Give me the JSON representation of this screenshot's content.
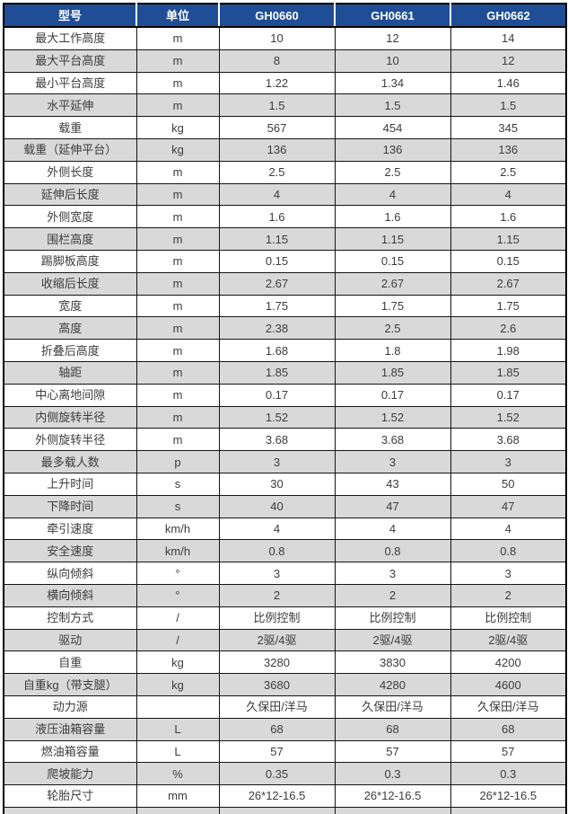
{
  "colors": {
    "header_bg": "#1F4E96",
    "header_text": "#FFFFFF",
    "row_alt_bg": "#D9D9D9",
    "row_bg": "#FFFFFF",
    "body_text": "#3C3C3C",
    "border": "#000000"
  },
  "chart_data": {
    "type": "table",
    "title": "",
    "columns": [
      "型号",
      "单位",
      "GH0660",
      "GH0661",
      "GH0662"
    ],
    "rows": [
      [
        "最大工作高度",
        "m",
        "10",
        "12",
        "14"
      ],
      [
        "最大平台高度",
        "m",
        "8",
        "10",
        "12"
      ],
      [
        "最小平台高度",
        "m",
        "1.22",
        "1.34",
        "1.46"
      ],
      [
        "水平延伸",
        "m",
        "1.5",
        "1.5",
        "1.5"
      ],
      [
        "载重",
        "kg",
        "567",
        "454",
        "345"
      ],
      [
        "载重（延伸平台）",
        "kg",
        "136",
        "136",
        "136"
      ],
      [
        "外侧长度",
        "m",
        "2.5",
        "2.5",
        "2.5"
      ],
      [
        "延伸后长度",
        "m",
        "4",
        "4",
        "4"
      ],
      [
        "外侧宽度",
        "m",
        "1.6",
        "1.6",
        "1.6"
      ],
      [
        "围栏高度",
        "m",
        "1.15",
        "1.15",
        "1.15"
      ],
      [
        "踢脚板高度",
        "m",
        "0.15",
        "0.15",
        "0.15"
      ],
      [
        "收缩后长度",
        "m",
        "2.67",
        "2.67",
        "2.67"
      ],
      [
        "宽度",
        "m",
        "1.75",
        "1.75",
        "1.75"
      ],
      [
        "高度",
        "m",
        "2.38",
        "2.5",
        "2.6"
      ],
      [
        "折叠后高度",
        "m",
        "1.68",
        "1.8",
        "1.98"
      ],
      [
        "轴距",
        "m",
        "1.85",
        "1.85",
        "1.85"
      ],
      [
        "中心离地间隙",
        "m",
        "0.17",
        "0.17",
        "0.17"
      ],
      [
        "内侧旋转半径",
        "m",
        "1.52",
        "1.52",
        "1.52"
      ],
      [
        "外侧旋转半径",
        "m",
        "3.68",
        "3.68",
        "3.68"
      ],
      [
        "最多载人数",
        "p",
        "3",
        "3",
        "3"
      ],
      [
        "上升时间",
        "s",
        "30",
        "43",
        "50"
      ],
      [
        "下降时间",
        "s",
        "40",
        "47",
        "47"
      ],
      [
        "牵引速度",
        "km/h",
        "4",
        "4",
        "4"
      ],
      [
        "安全速度",
        "km/h",
        "0.8",
        "0.8",
        "0.8"
      ],
      [
        "纵向倾斜",
        "°",
        "3",
        "3",
        "3"
      ],
      [
        "横向倾斜",
        "°",
        "2",
        "2",
        "2"
      ],
      [
        "控制方式",
        "/",
        "比例控制",
        "比例控制",
        "比例控制"
      ],
      [
        "驱动",
        "/",
        "2驱/4驱",
        "2驱/4驱",
        "2驱/4驱"
      ],
      [
        "自重",
        "kg",
        "3280",
        "3830",
        "4200"
      ],
      [
        "自重kg（带支腿）",
        "kg",
        "3680",
        "4280",
        "4600"
      ],
      [
        "动力源",
        "",
        "久保田/洋马",
        "久保田/洋马",
        "久保田/洋马"
      ],
      [
        "液压油箱容量",
        "L",
        "68",
        "68",
        "68"
      ],
      [
        "燃油箱容量",
        "L",
        "57",
        "57",
        "57"
      ],
      [
        "爬坡能力",
        "%",
        "0.35",
        "0.3",
        "0.3"
      ],
      [
        "轮胎尺寸",
        "mm",
        "26*12-16.5",
        "26*12-16.5",
        "26*12-16.5"
      ]
    ]
  }
}
